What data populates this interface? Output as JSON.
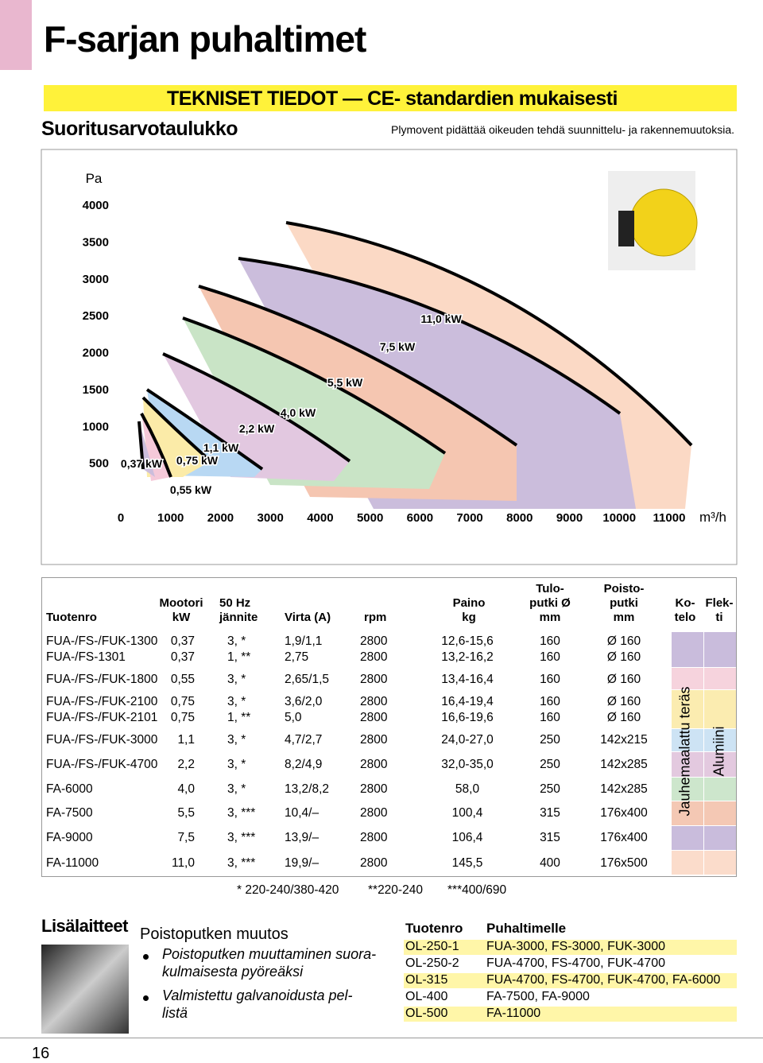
{
  "header": {
    "title": "F-sarjan puhaltimet",
    "banner": "TEKNISET TIEDOT — CE- standardien mukaisesti",
    "subtitle": "Suoritusarvotaulukko",
    "note": "Plymovent pidättää oikeuden tehdä suunnittelu- ja rakennemuutoksia."
  },
  "chart": {
    "y_unit": "Pa",
    "x_unit": "m³/h",
    "ylim": [
      0,
      4000
    ],
    "yticks": [
      500,
      1000,
      1500,
      2000,
      2500,
      3000,
      3500,
      4000
    ],
    "xlim": [
      0,
      11000
    ],
    "xticks": [
      0,
      1000,
      2000,
      3000,
      4000,
      5000,
      6000,
      7000,
      8000,
      9000,
      10000,
      11000
    ],
    "power_labels": [
      "0,37 kW",
      "0,55 kW",
      "0,75 kW",
      "1,1 kW",
      "2,2 kW",
      "4,0 kW",
      "5,5 kW",
      "7,5 kW",
      "11,0 kW"
    ]
  },
  "table": {
    "headers": [
      [
        "Tuotenro"
      ],
      [
        "Mootori",
        "kW"
      ],
      [
        "50 Hz",
        "jännite"
      ],
      [
        "Virta (A)"
      ],
      [
        "rpm"
      ],
      [
        "Paino",
        "kg"
      ],
      [
        "Tulo-",
        "putki Ø",
        "mm"
      ],
      [
        "Poisto-",
        "putki",
        "mm"
      ],
      [
        "Ko-",
        "telo"
      ],
      [
        "Flek-",
        "ti"
      ]
    ],
    "rows": [
      [
        "FUA-/FS-/FUK-1300",
        "0,37",
        "3, *",
        "1,9/1,1",
        "2800",
        "12,6-15,6",
        "160",
        "Ø 160"
      ],
      [
        "FUA-/FS-1301",
        "0,37",
        "1, **",
        "2,75",
        "2800",
        "13,2-16,2",
        "160",
        "Ø 160"
      ],
      [
        "FUA-/FS-/FUK-1800",
        "0,55",
        "3, *",
        "2,65/1,5",
        "2800",
        "13,4-16,4",
        "160",
        "Ø 160"
      ],
      [
        "FUA-/FS-/FUK-2100",
        "0,75",
        "3, *",
        "3,6/2,0",
        "2800",
        "16,4-19,4",
        "160",
        "Ø 160"
      ],
      [
        "FUA-/FS-/FUK-2101",
        "0,75",
        "1, **",
        "5,0",
        "2800",
        "16,6-19,6",
        "160",
        "Ø 160"
      ],
      [
        "FUA-/FS-/FUK-3000",
        "1,1",
        "3, *",
        "4,7/2,7",
        "2800",
        "24,0-27,0",
        "250",
        "142x215"
      ],
      [
        "FUA-/FS-/FUK-4700",
        "2,2",
        "3, *",
        "8,2/4,9",
        "2800",
        "32,0-35,0",
        "250",
        "142x285"
      ],
      [
        "FA-6000",
        "4,0",
        "3, *",
        "13,2/8,2",
        "2800",
        "58,0",
        "250",
        "142x285"
      ],
      [
        "FA-7500",
        "5,5",
        "3, ***",
        "10,4/–",
        "2800",
        "100,4",
        "315",
        "176x400"
      ],
      [
        "FA-9000",
        "7,5",
        "3, ***",
        "13,9/–",
        "2800",
        "106,4",
        "315",
        "176x400"
      ],
      [
        "FA-11000",
        "11,0",
        "3, ***",
        "19,9/–",
        "2800",
        "145,5",
        "400",
        "176x500"
      ]
    ],
    "kotelo": "Jauhemaalattu teräs",
    "flekti": "Alumiini",
    "footnotes": [
      "* 220-240/380-420",
      "**220-240",
      "***400/690"
    ]
  },
  "accessories": {
    "title": "Lisälaitteet",
    "subtitle": "Poistoputken muutos",
    "bullets": [
      [
        "Poistoputken muuttaminen suora-",
        "kulmaisesta pyöreäksi"
      ],
      [
        "Valmistettu galvanoidusta pel-",
        "listä"
      ]
    ],
    "headers": [
      "Tuotenro",
      "Puhaltimelle"
    ],
    "rows": [
      [
        "OL-250-1",
        "FUA-3000, FS-3000, FUK-3000"
      ],
      [
        "OL-250-2",
        "FUA-4700, FS-4700, FUK-4700"
      ],
      [
        "OL-315",
        "FUA-4700, FS-4700, FUK-4700, FA-6000"
      ],
      [
        "OL-400",
        "FA-7500, FA-9000"
      ],
      [
        "OL-500",
        "FA-11000"
      ]
    ]
  },
  "page_number": "16"
}
